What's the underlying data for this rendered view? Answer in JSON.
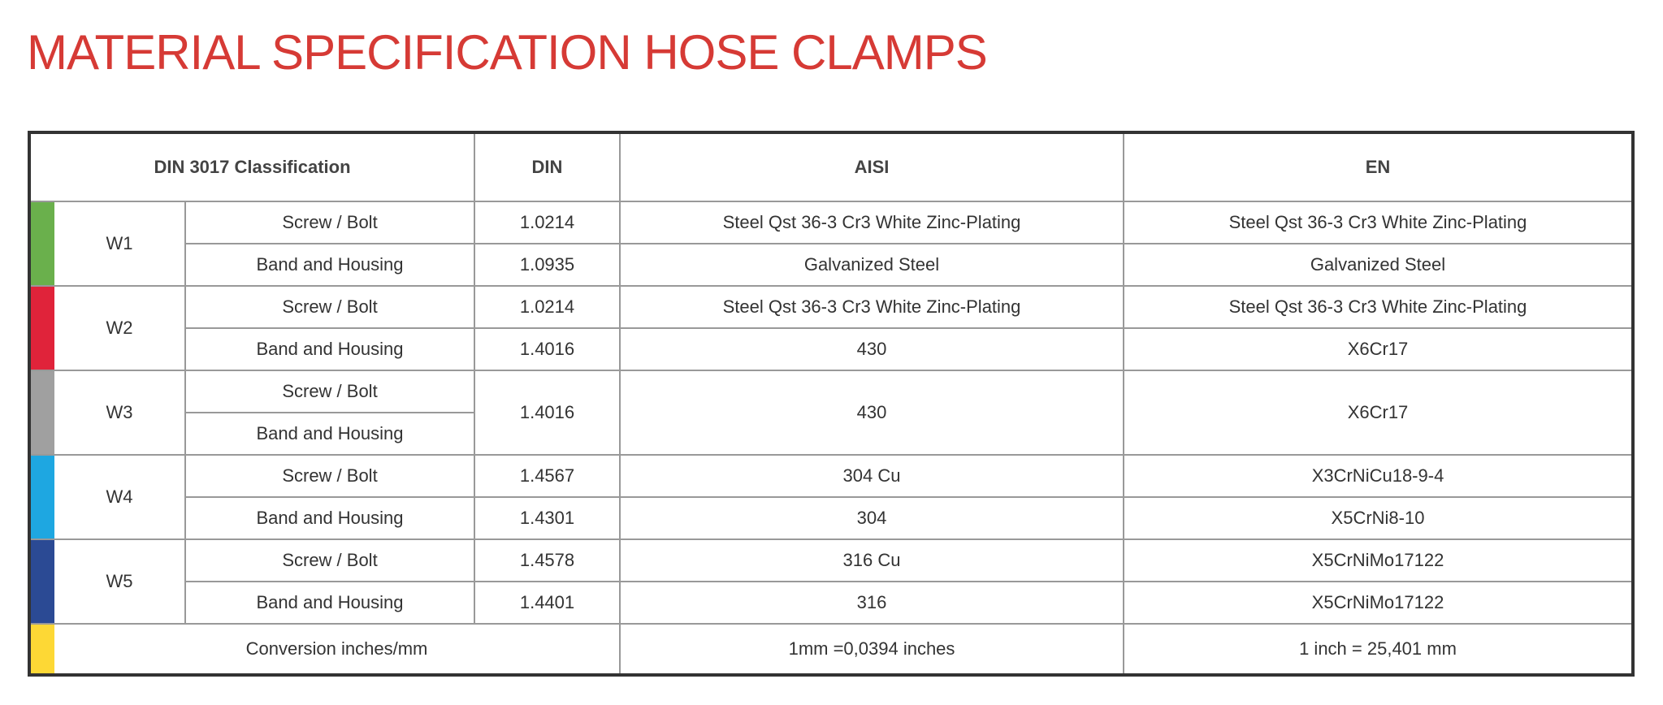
{
  "title": "MATERIAL SPECIFICATION HOSE CLAMPS",
  "table": {
    "headers": {
      "classification": "DIN 3017 Classification",
      "din": "DIN",
      "aisi": "AISI",
      "en": "EN"
    },
    "groups": [
      {
        "code": "W1",
        "color": "#6ab04c",
        "rows": [
          {
            "part": "Screw / Bolt",
            "din": "1.0214",
            "aisi": "Steel Qst 36-3 Cr3 White Zinc-Plating",
            "en": "Steel Qst 36-3 Cr3 White Zinc-Plating"
          },
          {
            "part": "Band and Housing",
            "din": "1.0935",
            "aisi": "Galvanized Steel",
            "en": "Galvanized Steel"
          }
        ]
      },
      {
        "code": "W2",
        "color": "#e0233a",
        "rows": [
          {
            "part": "Screw / Bolt",
            "din": "1.0214",
            "aisi": "Steel Qst 36-3 Cr3 White Zinc-Plating",
            "en": "Steel Qst 36-3 Cr3 White Zinc-Plating"
          },
          {
            "part": "Band and Housing",
            "din": "1.4016",
            "aisi": "430",
            "en": "X6Cr17"
          }
        ]
      },
      {
        "code": "W3",
        "color": "#a0a0a0",
        "rows": [
          {
            "part": "Screw / Bolt",
            "din": "1.4016",
            "aisi": "430",
            "en": "X6Cr17"
          },
          {
            "part": "Band and Housing"
          }
        ]
      },
      {
        "code": "W4",
        "color": "#1ea7e1",
        "rows": [
          {
            "part": "Screw / Bolt",
            "din": "1.4567",
            "aisi": "304 Cu",
            "en": "X3CrNiCu18-9-4"
          },
          {
            "part": "Band and Housing",
            "din": "1.4301",
            "aisi": "304",
            "en": "X5CrNi8-10"
          }
        ]
      },
      {
        "code": "W5",
        "color": "#2b4a94",
        "rows": [
          {
            "part": "Screw / Bolt",
            "din": "1.4578",
            "aisi": "316 Cu",
            "en": "X5CrNiMo17122"
          },
          {
            "part": "Band and Housing",
            "din": "1.4401",
            "aisi": "316",
            "en": "X5CrNiMo17122"
          }
        ]
      }
    ],
    "conversion": {
      "label": "Conversion inches/mm",
      "color": "#fdd835",
      "aisi": "1mm =0,0394 inches",
      "en": "1 inch = 25,401 mm"
    }
  }
}
